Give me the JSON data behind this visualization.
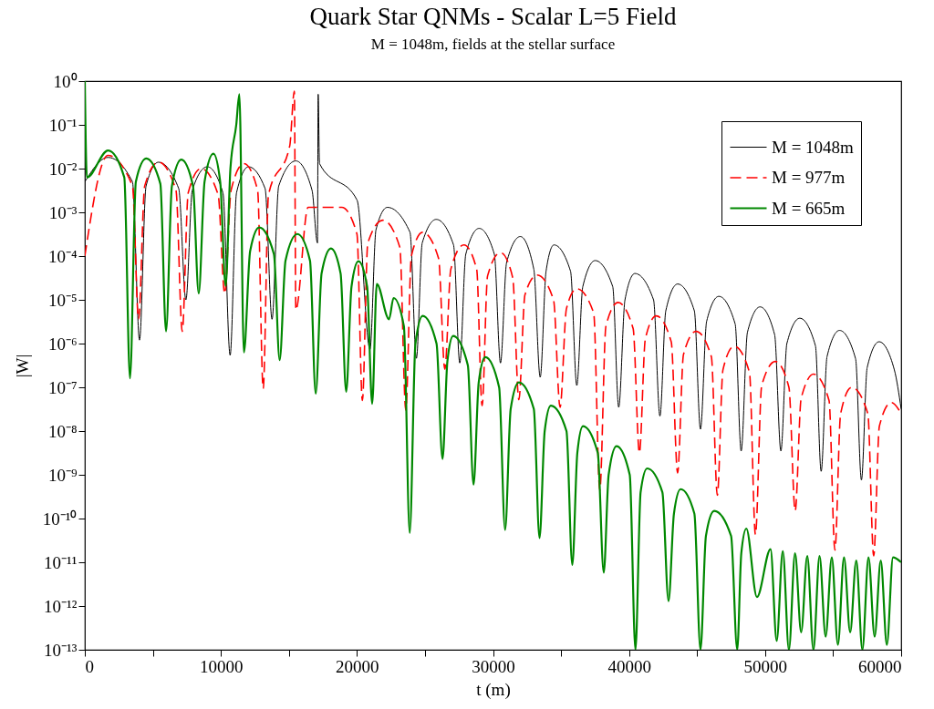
{
  "chart_data": {
    "type": "line",
    "title": "Quark Star QNMs - Scalar L=5 Field",
    "subtitle": "M = 1048m, fields at the stellar surface",
    "xlabel": "t (m)",
    "ylabel": "|W|",
    "log": "y",
    "legend": "top right",
    "xlim": [
      0,
      60000
    ],
    "xticks": [
      0,
      {
        "value": 5000,
        "label": null
      },
      10000,
      {
        "value": 15000,
        "label": null
      },
      20000,
      {
        "value": 25000,
        "label": null
      },
      30000,
      {
        "value": 35000,
        "label": null
      },
      40000,
      {
        "value": 45000,
        "label": null
      },
      50000,
      {
        "value": 55000,
        "label": null
      },
      60000
    ],
    "ylim": [
      1e-13,
      1
    ],
    "yticks": [
      {
        "value": 1,
        "label": "10⁰"
      },
      {
        "value": 0.1,
        "label": "10⁻¹"
      },
      {
        "value": 0.01,
        "label": "10⁻²"
      },
      {
        "value": 0.001,
        "label": "10⁻³"
      },
      {
        "value": 0.0001,
        "label": "10⁻⁴"
      },
      {
        "value": 1e-05,
        "label": "10⁻⁵"
      },
      {
        "value": 1e-06,
        "label": "10⁻⁶"
      },
      {
        "value": 1e-07,
        "label": "10⁻⁷"
      },
      {
        "value": 1e-08,
        "label": "10⁻⁸"
      },
      {
        "value": 1e-09,
        "label": "10⁻⁹"
      },
      {
        "value": 1e-10,
        "label": "10⁻¹⁰"
      },
      {
        "value": 1e-11,
        "label": "10⁻¹¹"
      },
      {
        "value": 1e-12,
        "label": "10⁻¹²"
      },
      {
        "value": 1e-13,
        "label": "10⁻¹³"
      }
    ],
    "series": [
      {
        "name": "M = 1048m",
        "color": "#000000",
        "line_style": "solid",
        "x": [
          0,
          1700,
          3500,
          4020,
          4500,
          5410,
          6900,
          7430,
          7900,
          9000,
          10150,
          10680,
          11150,
          12030,
          13250,
          13760,
          14250,
          15510,
          16700,
          17100,
          17150,
          17250,
          20010,
          20960,
          21400,
          22240,
          23900,
          24370,
          24800,
          25830,
          27100,
          27560,
          28000,
          28980,
          30100,
          30550,
          31000,
          32010,
          33000,
          33470,
          33900,
          34480,
          35700,
          36160,
          36600,
          37510,
          38800,
          39240,
          39700,
          40430,
          41800,
          42270,
          42700,
          43570,
          44800,
          45250,
          45700,
          46600,
          47800,
          48240,
          48700,
          49630,
          50700,
          51160,
          51600,
          52550,
          53700,
          54120,
          54550,
          55470,
          56650,
          57080,
          57500,
          58380,
          59500,
          60000
        ],
        "values": [
          0.005,
          0.018,
          0.005,
          1.2e-06,
          0.004,
          0.014,
          0.0035,
          1e-05,
          0.0032,
          0.011,
          0.0028,
          5.4e-07,
          0.0028,
          0.011,
          0.0035,
          3.6e-06,
          0.004,
          0.015,
          0.0032,
          0.0002,
          0.5,
          0.013,
          0.0019,
          7.4e-07,
          0.0004,
          0.0013,
          0.00035,
          4.6e-07,
          0.0002,
          0.00069,
          0.00018,
          3.6e-07,
          0.00011,
          0.00043,
          0.00011,
          3.6e-07,
          7.1e-05,
          0.00028,
          5e-05,
          1.7e-07,
          4.5e-05,
          0.00018,
          4.5e-05,
          1.1e-07,
          2e-05,
          7.9e-05,
          2e-05,
          3.5e-08,
          1e-05,
          4e-05,
          1e-05,
          2.2e-08,
          5.6e-06,
          2.3e-05,
          5.6e-06,
          1.1e-08,
          3.2e-06,
          1.2e-05,
          2.8e-06,
          3.5e-09,
          1.8e-06,
          6.9e-06,
          1.6e-06,
          3.5e-09,
          1e-06,
          3.8e-06,
          8.9e-07,
          1.2e-09,
          5e-07,
          2e-06,
          4.5e-07,
          7.6e-10,
          2.8e-07,
          1.1e-06,
          2.5e-07,
          3.2e-08
        ]
      },
      {
        "name": "M = 977m",
        "color": "#ff0000",
        "line_style": "dashed",
        "x": [
          0,
          1700,
          3500,
          3950,
          4400,
          5410,
          6700,
          7160,
          7600,
          8550,
          9800,
          10280,
          10750,
          11690,
          12700,
          13110,
          13500,
          15060,
          15400,
          15510,
          16410,
          18880,
          20000,
          20400,
          20800,
          21910,
          23150,
          23590,
          24000,
          24830,
          26000,
          26460,
          26900,
          27860,
          28800,
          29200,
          29600,
          30550,
          31450,
          31900,
          32350,
          33240,
          34450,
          34930,
          35400,
          36160,
          37400,
          37850,
          38300,
          39190,
          40300,
          40760,
          41200,
          42000,
          43100,
          43570,
          44000,
          44920,
          46050,
          46490,
          46900,
          47720,
          48850,
          49290,
          49750,
          50750,
          51750,
          52210,
          52650,
          53560,
          54700,
          55130,
          55550,
          56360,
          57550,
          57980,
          58400,
          59280,
          60000
        ],
        "values": [
          0.0001,
          0.02,
          0.004,
          3.6e-06,
          0.004,
          0.014,
          0.0032,
          1.9e-06,
          0.0028,
          0.01,
          0.0025,
          1.4e-05,
          0.0032,
          0.013,
          0.0032,
          9.3e-08,
          0.0025,
          0.033,
          0.59,
          5.9e-06,
          0.0013,
          0.0013,
          0.00032,
          5e-08,
          0.0002,
          0.00066,
          0.00016,
          3e-08,
          0.0001,
          0.00035,
          8.9e-05,
          2.6e-07,
          5e-05,
          0.00018,
          5e-05,
          3.8e-08,
          3.5e-05,
          0.00012,
          3.2e-05,
          5.2e-08,
          1.3e-05,
          3.7e-05,
          1e-05,
          3.5e-08,
          6.3e-06,
          1.8e-05,
          5e-06,
          4.4e-10,
          2.5e-06,
          8.7e-06,
          2.2e-06,
          3.2e-09,
          1.3e-06,
          4.3e-06,
          1.1e-06,
          1.1e-09,
          5.6e-07,
          1.9e-06,
          5e-07,
          3.4e-10,
          2.5e-07,
          8.7e-07,
          2.2e-07,
          4.3e-11,
          1.1e-07,
          3.9e-07,
          1e-07,
          1.5e-10,
          5.6e-08,
          2e-07,
          5e-08,
          1.9e-11,
          2.5e-08,
          1e-07,
          2.5e-08,
          1.4e-11,
          1.3e-08,
          4.5e-08,
          2.5e-08
        ]
      },
      {
        "name": "M = 665m",
        "color": "#008800",
        "line_style": "solid",
        "x": [
          0,
          150,
          1710,
          2900,
          3320,
          3750,
          4510,
          5550,
          5970,
          6400,
          7090,
          7950,
          8370,
          8800,
          9450,
          9950,
          10350,
          10700,
          11130,
          11360,
          11690,
          12150,
          12820,
          13900,
          14320,
          14750,
          15620,
          16550,
          16970,
          17400,
          18090,
          18800,
          19210,
          19600,
          20110,
          20750,
          21120,
          21460,
          22360,
          22690,
          23450,
          23880,
          24300,
          24830,
          25850,
          26290,
          26650,
          27070,
          28150,
          28570,
          28950,
          29430,
          30450,
          30890,
          31300,
          31900,
          33000,
          33420,
          33800,
          34250,
          35400,
          35830,
          36200,
          36610,
          37700,
          38140,
          38500,
          39080,
          40050,
          40470,
          40850,
          41330,
          42450,
          42900,
          43300,
          43790,
          44800,
          45250,
          45650,
          46260,
          47500,
          47950,
          48250,
          48620,
          49400,
          50400,
          50850,
          51300,
          51750,
          52200,
          52650,
          53100,
          53550,
          54000,
          54450,
          54900,
          55350,
          55800,
          56250,
          56700,
          57150,
          57600,
          58050,
          58500,
          58950,
          59400,
          60000
        ],
        "values": [
          1,
          0.0063,
          0.026,
          0.0063,
          1.6e-07,
          0.005,
          0.017,
          0.0045,
          1.9e-06,
          0.004,
          0.016,
          0.004,
          1.4e-05,
          0.005,
          0.022,
          0.005,
          2.1e-05,
          0.01,
          0.1,
          0.5,
          6.3e-07,
          0.00013,
          0.00045,
          0.00011,
          4.2e-07,
          7.9e-05,
          0.00032,
          7.9e-05,
          7.2e-08,
          4e-05,
          0.00015,
          4e-05,
          7.9e-08,
          2e-05,
          7.6e-05,
          2e-05,
          4.2e-08,
          2.3e-05,
          3.6e-06,
          1.1e-05,
          2.5e-06,
          4.7e-11,
          1e-06,
          4.3e-06,
          1e-06,
          2.3e-09,
          4e-07,
          1.5e-06,
          3.2e-07,
          6e-10,
          1.3e-07,
          4.9e-07,
          1e-07,
          5.5e-11,
          3.2e-08,
          1.3e-07,
          3.2e-08,
          3.6e-11,
          1e-08,
          3.8e-08,
          1e-08,
          8.7e-12,
          3.2e-09,
          1.3e-08,
          3.2e-09,
          5.8e-12,
          1e-09,
          4.5e-09,
          1e-09,
          1e-13,
          4e-10,
          1.4e-09,
          4e-10,
          1.3e-12,
          1.3e-10,
          4.7e-10,
          1.3e-10,
          1e-13,
          4e-11,
          1.5e-10,
          4e-11,
          1e-13,
          1.6e-11,
          5.9e-11,
          1.6e-12,
          2e-11,
          1.6e-13,
          1.8e-11,
          1e-13,
          1.6e-11,
          2.5e-13,
          1.4e-11,
          1e-13,
          1.4e-11,
          2e-13,
          1.3e-11,
          1.3e-13,
          1.3e-11,
          2.5e-13,
          1.1e-11,
          1e-13,
          1.3e-11,
          2e-13,
          1.1e-11,
          1.3e-13,
          1.3e-11,
          1e-11
        ]
      }
    ]
  }
}
